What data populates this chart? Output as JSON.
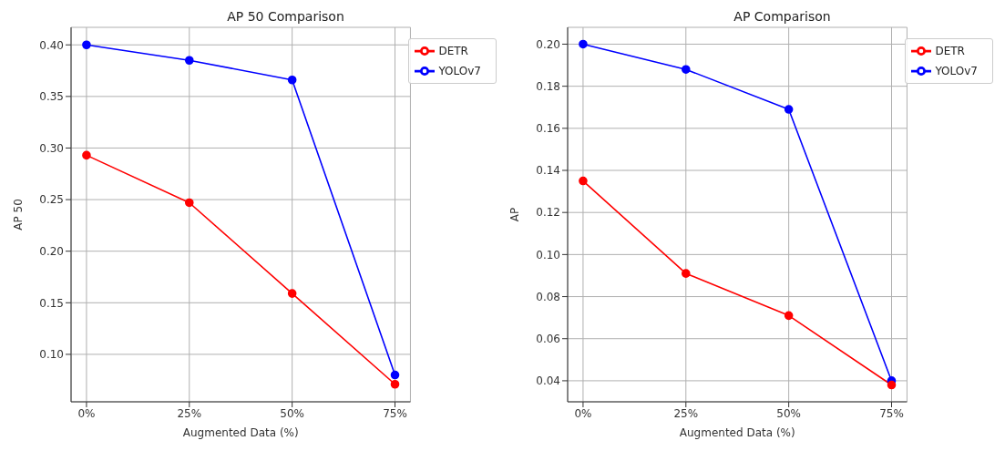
{
  "chart_data": [
    {
      "type": "line",
      "title": "AP 50 Comparison",
      "xlabel": "Augmented Data (%)",
      "ylabel": "AP 50",
      "categories": [
        "0%",
        "25%",
        "50%",
        "75%"
      ],
      "series": [
        {
          "name": "YOLOv7",
          "color": "#0000ff",
          "values": [
            0.4,
            0.385,
            0.366,
            0.08
          ]
        },
        {
          "name": "DETR",
          "color": "#ff0000",
          "values": [
            0.293,
            0.247,
            0.159,
            0.071
          ]
        }
      ],
      "ylim": [
        0.054,
        0.417
      ],
      "yticks": [
        {
          "value": 0.1,
          "label": "0.10"
        },
        {
          "value": 0.15,
          "label": "0.15"
        },
        {
          "value": 0.2,
          "label": "0.20"
        },
        {
          "value": 0.25,
          "label": "0.25"
        },
        {
          "value": 0.3,
          "label": "0.30"
        },
        {
          "value": 0.35,
          "label": "0.35"
        },
        {
          "value": 0.4,
          "label": "0.40"
        }
      ],
      "grid": true,
      "legend": "top right",
      "marker": "circle",
      "line_style": "solid"
    },
    {
      "type": "line",
      "title": "AP Comparison",
      "xlabel": "Augmented Data (%)",
      "ylabel": "AP",
      "categories": [
        "0%",
        "25%",
        "50%",
        "75%"
      ],
      "series": [
        {
          "name": "YOLOv7",
          "color": "#0000ff",
          "values": [
            0.2,
            0.188,
            0.169,
            0.04
          ]
        },
        {
          "name": "DETR",
          "color": "#ff0000",
          "values": [
            0.135,
            0.091,
            0.071,
            0.038
          ]
        }
      ],
      "ylim": [
        0.03,
        0.208
      ],
      "yticks": [
        {
          "value": 0.04,
          "label": "0.04"
        },
        {
          "value": 0.06,
          "label": "0.06"
        },
        {
          "value": 0.08,
          "label": "0.08"
        },
        {
          "value": 0.1,
          "label": "0.10"
        },
        {
          "value": 0.12,
          "label": "0.12"
        },
        {
          "value": 0.14,
          "label": "0.14"
        },
        {
          "value": 0.16,
          "label": "0.16"
        },
        {
          "value": 0.18,
          "label": "0.18"
        },
        {
          "value": 0.2,
          "label": "0.20"
        }
      ],
      "grid": true,
      "legend": "top right",
      "marker": "circle",
      "line_style": "solid"
    }
  ]
}
